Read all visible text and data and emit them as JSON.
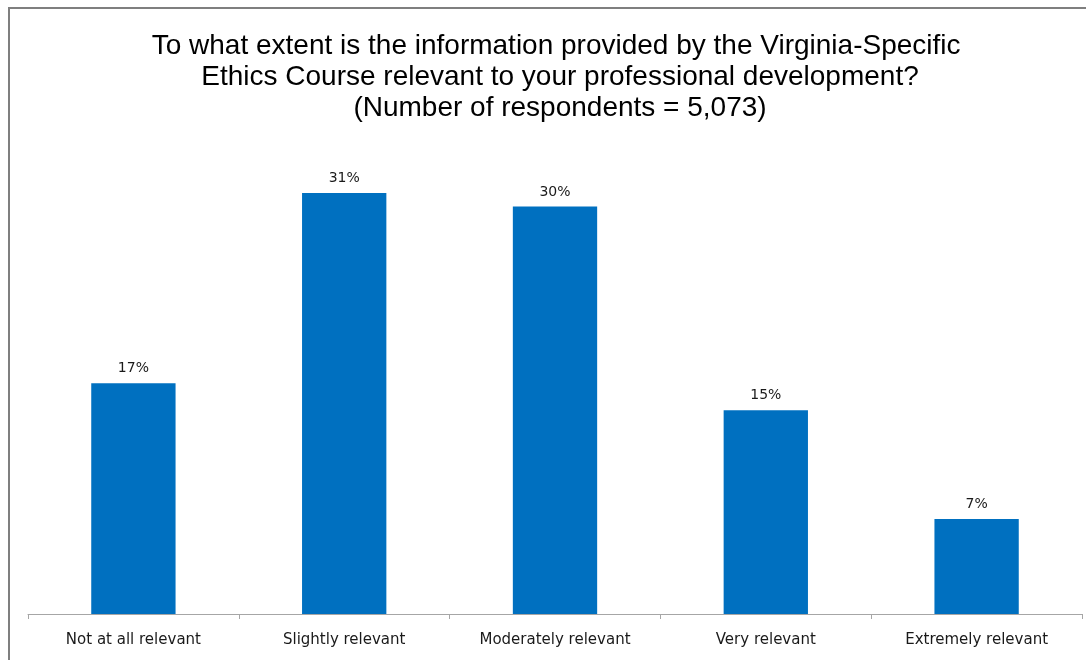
{
  "chart_data": {
    "type": "bar",
    "title": "To what extent is the information provided by the Virginia-Specific Ethics Course relevant to your professional development?",
    "subtitle": "(Number of respondents = 5,073)",
    "categories": [
      "Not at all relevant",
      "Slightly relevant",
      "Moderately relevant",
      "Very relevant",
      "Extremely relevant"
    ],
    "values": [
      17,
      31,
      30,
      15,
      7
    ],
    "value_labels": [
      "17%",
      "31%",
      "30%",
      "15%",
      "7%"
    ],
    "color": "#0070c0"
  }
}
